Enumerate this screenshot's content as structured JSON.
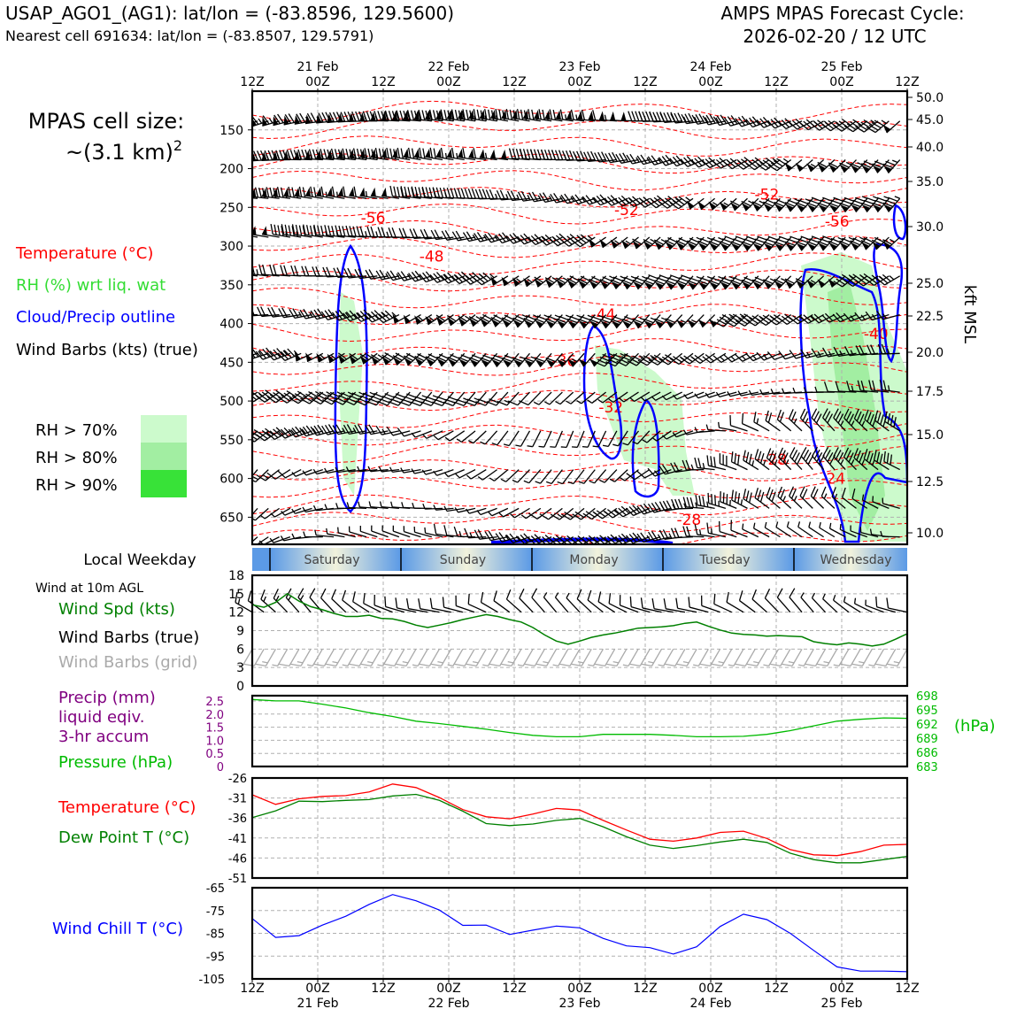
{
  "header": {
    "station": "USAP_AGO1_(AG1): lat/lon = (-83.8596, 129.5600)",
    "nearest": "Nearest cell 691634: lat/lon = (-83.8507, 129.5791)",
    "cycle_title": "AMPS MPAS Forecast Cycle:",
    "cycle_time": "2026-02-20 / 12 UTC"
  },
  "colors": {
    "temperature": "#ff0000",
    "rh": "#22dd22",
    "cloud": "#0000ff",
    "wind": "#000000",
    "grid_barb": "#aaaaaa",
    "precip": "#800080",
    "pressure": "#00bb00",
    "dewpoint": "#008000",
    "windchill": "#0000ff",
    "rh70": "#ccfacc",
    "rh80": "#a2eea2",
    "rh90": "#38e238"
  },
  "chart_data": [
    {
      "type": "line",
      "panel": "cross-section",
      "time_axis": {
        "hours": [
          "12Z",
          "00Z",
          "12Z",
          "00Z",
          "12Z",
          "00Z",
          "12Z",
          "00Z",
          "12Z",
          "00Z",
          "12Z"
        ],
        "dates": [
          "21 Feb",
          "22 Feb",
          "23 Feb",
          "24 Feb",
          "25 Feb"
        ]
      },
      "pressure_ticks": [
        "150",
        "200",
        "250",
        "300",
        "350",
        "400",
        "450",
        "500",
        "550",
        "600",
        "650"
      ],
      "height_ticks_label": "kft MSL",
      "height_ticks": [
        "50.0",
        "45.0",
        "40.0",
        "35.0",
        "30.0",
        "25.0",
        "22.5",
        "20.0",
        "17.5",
        "15.0",
        "12.5",
        "10.0"
      ],
      "side_text": {
        "cell_size_1": "MPAS cell size:",
        "cell_size_2": "~(3.1 km)",
        "cell_size_exp": "2"
      },
      "legend": {
        "temperature": "Temperature (°C)",
        "rh": "RH (%) wrt liq. wat",
        "cloud": "Cloud/Precip outline",
        "wind": "Wind Barbs (kts) (true)",
        "rh70": "RH > 70%",
        "rh80": "RH > 80%",
        "rh90": "RH > 90%"
      },
      "temperature_contours": [
        {
          "label": "-56",
          "x_hours": 31,
          "p": 270
        },
        {
          "label": "-52",
          "x_hours": 96,
          "p": 260
        },
        {
          "label": "-52",
          "x_hours": 132,
          "p": 240
        },
        {
          "label": "-56",
          "x_hours": 150,
          "p": 275
        },
        {
          "label": "-48",
          "x_hours": 46,
          "p": 320
        },
        {
          "label": "-44",
          "x_hours": 90,
          "p": 395
        },
        {
          "label": "-40",
          "x_hours": 160,
          "p": 420
        },
        {
          "label": "-36",
          "x_hours": 80,
          "p": 455
        },
        {
          "label": "-32",
          "x_hours": 92,
          "p": 515
        },
        {
          "label": "-28",
          "x_hours": 134,
          "p": 582
        },
        {
          "label": "-24",
          "x_hours": 149,
          "p": 607
        },
        {
          "label": "-28",
          "x_hours": 112,
          "p": 660
        }
      ]
    },
    {
      "type": "line",
      "panel": "weekday",
      "title": "Local Weekday",
      "days": [
        "Saturday",
        "Sunday",
        "Monday",
        "Tuesday",
        "Wednesday"
      ]
    },
    {
      "type": "line",
      "panel": "wind",
      "title": "Wind at 10m AGL",
      "legend": [
        "Wind Spd (kts)",
        "Wind Barbs (true)",
        "Wind Barbs (grid)"
      ],
      "yticks": [
        "0",
        "3",
        "6",
        "9",
        "12",
        "15",
        "18"
      ],
      "ylim": [
        0,
        18
      ],
      "x_hours": [
        0,
        3,
        6,
        9,
        12,
        15,
        18,
        21,
        24,
        27,
        30,
        33,
        36,
        39,
        42,
        45,
        48,
        51,
        54,
        57,
        60,
        63,
        66,
        69,
        72,
        75,
        78,
        81,
        84,
        87,
        90,
        93,
        96,
        99,
        102,
        105,
        108,
        111,
        114,
        117,
        120,
        123,
        126,
        129,
        132,
        135,
        138,
        141,
        144,
        147,
        150,
        153,
        156,
        159,
        162,
        165,
        168
      ],
      "series": [
        {
          "name": "Wind Spd (kts)",
          "values": [
            13.2,
            12.8,
            13.6,
            15.0,
            13.8,
            12.9,
            12.4,
            11.8,
            11.3,
            11.3,
            11.5,
            11.0,
            10.9,
            10.5,
            9.9,
            9.5,
            9.9,
            10.3,
            10.8,
            11.2,
            11.6,
            11.3,
            10.8,
            10.4,
            9.5,
            8.3,
            7.3,
            6.8,
            7.3,
            7.9,
            8.3,
            8.6,
            9.0,
            9.4,
            9.5,
            9.6,
            9.8,
            10.2,
            10.4,
            9.7,
            9.1,
            8.6,
            8.4,
            8.3,
            8.1,
            8.2,
            8.1,
            8.0,
            7.2,
            6.9,
            6.7,
            7.0,
            6.8,
            6.5,
            6.8,
            7.6,
            8.5
          ]
        }
      ]
    },
    {
      "type": "line",
      "panel": "precip-pressure",
      "legend": [
        "Precip (mm)",
        "liquid eqiv.",
        "3-hr accum",
        "Pressure (hPa)"
      ],
      "yticks_left": [
        "0",
        "0.5",
        "1.0",
        "1.5",
        "2.0",
        "2.5"
      ],
      "ylim_left": [
        0,
        2.5
      ],
      "yticks_right": [
        "683",
        "686",
        "689",
        "692",
        "695",
        "698"
      ],
      "ylim_right": [
        683,
        698
      ],
      "right_label": "(hPa)",
      "x_hours": [
        0,
        6,
        12,
        18,
        24,
        30,
        36,
        42,
        48,
        54,
        60,
        66,
        72,
        78,
        84,
        90,
        96,
        102,
        108,
        114,
        120,
        126,
        132,
        138,
        144,
        150,
        156,
        162,
        168
      ],
      "series": [
        {
          "name": "Pressure (hPa)",
          "values": [
            697.2,
            696.9,
            696.9,
            696.2,
            695.4,
            694.4,
            693.6,
            692.6,
            692.1,
            691.5,
            690.9,
            690.2,
            689.6,
            689.3,
            689.3,
            689.8,
            689.8,
            689.8,
            689.6,
            689.3,
            689.3,
            689.4,
            689.8,
            690.6,
            691.6,
            692.6,
            693.0,
            693.3,
            693.2
          ]
        }
      ]
    },
    {
      "type": "line",
      "panel": "temperature",
      "legend": [
        "Temperature (°C)",
        "Dew Point T (°C)"
      ],
      "yticks": [
        "-26",
        "-31",
        "-36",
        "-41",
        "-46",
        "-51"
      ],
      "ylim": [
        -51,
        -26
      ],
      "x_hours": [
        0,
        6,
        12,
        18,
        24,
        30,
        36,
        42,
        48,
        54,
        60,
        66,
        72,
        78,
        84,
        90,
        96,
        102,
        108,
        114,
        120,
        126,
        132,
        138,
        144,
        150,
        156,
        162,
        168
      ],
      "series": [
        {
          "name": "Temperature (°C)",
          "values": [
            -30.2,
            -32.6,
            -31.2,
            -30.6,
            -30.4,
            -29.5,
            -27.5,
            -28.4,
            -30.9,
            -33.9,
            -35.7,
            -36.2,
            -35.0,
            -33.6,
            -34.0,
            -36.6,
            -39.0,
            -41.3,
            -41.8,
            -41.0,
            -39.6,
            -39.3,
            -41.1,
            -43.9,
            -45.2,
            -45.4,
            -44.4,
            -42.8,
            -42.6
          ]
        },
        {
          "name": "Dew Point T (°C)",
          "values": [
            -35.9,
            -34.2,
            -31.8,
            -31.9,
            -31.6,
            -31.4,
            -30.5,
            -30.1,
            -31.6,
            -34.3,
            -37.4,
            -37.9,
            -37.5,
            -36.6,
            -36.1,
            -38.2,
            -40.7,
            -42.8,
            -43.6,
            -42.9,
            -42.0,
            -41.3,
            -42.1,
            -44.8,
            -46.4,
            -47.2,
            -47.2,
            -46.4,
            -45.6
          ]
        }
      ]
    },
    {
      "type": "line",
      "panel": "windchill",
      "legend": [
        "Wind Chill T (°C)"
      ],
      "yticks": [
        "-65",
        "-75",
        "-85",
        "-95",
        "-105"
      ],
      "ylim": [
        -105,
        -65
      ],
      "x_hours": [
        0,
        6,
        12,
        18,
        24,
        30,
        36,
        42,
        48,
        54,
        60,
        66,
        72,
        78,
        84,
        90,
        96,
        102,
        108,
        114,
        120,
        126,
        132,
        138,
        144,
        150,
        156,
        162,
        168
      ],
      "series": [
        {
          "name": "Wind Chill T (°C)",
          "values": [
            -78.5,
            -86.8,
            -86.0,
            -81.4,
            -77.5,
            -72.3,
            -68.0,
            -70.7,
            -74.8,
            -81.5,
            -81.4,
            -85.5,
            -83.6,
            -81.8,
            -82.6,
            -87.2,
            -90.5,
            -91.3,
            -94.1,
            -90.9,
            -82.0,
            -76.6,
            -79.0,
            -85.0,
            -92.5,
            -99.7,
            -101.6,
            -101.6,
            -101.8
          ]
        }
      ],
      "xticks": [
        "12Z",
        "00Z",
        "12Z",
        "00Z",
        "12Z",
        "00Z",
        "12Z",
        "00Z",
        "12Z",
        "00Z",
        "12Z"
      ],
      "xdates": [
        "21 Feb",
        "22 Feb",
        "23 Feb",
        "24 Feb",
        "25 Feb"
      ]
    }
  ]
}
